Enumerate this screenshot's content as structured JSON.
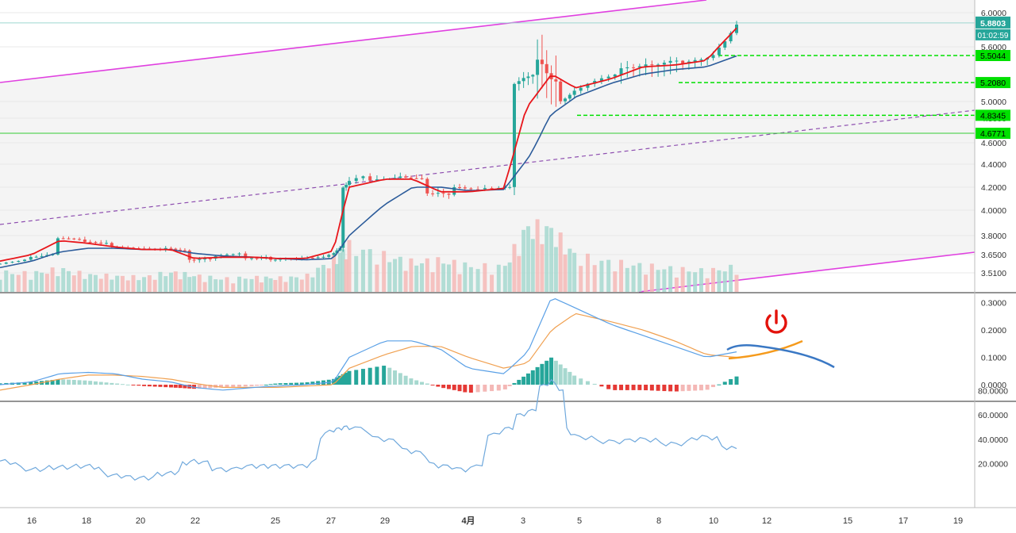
{
  "colors": {
    "up": "#26a69a",
    "down": "#ef5350",
    "ma_fast": "#e8161b",
    "ma_slow": "#2b5b9a",
    "channel": "#e040e0",
    "midline": "#8e4fb0",
    "level_line": "#00e000",
    "support": "#33cc33",
    "price_tag": "#00e000",
    "current_tag": "#26a69a",
    "macd_line": "#5aa0e6",
    "macd_signal": "#f0a050",
    "hist_up_strong": "#26a69a",
    "hist_up_weak": "#a6d8cf",
    "hist_down_strong": "#e53935",
    "hist_down_weak": "#f4b8b6",
    "third_line": "#6fa8dc",
    "power_icon": "#e3120b",
    "drawn_blue": "#3a78c4",
    "drawn_orange": "#f59a1b"
  },
  "chart_data": [
    {
      "type": "candlestick",
      "pane": "price",
      "y_ticks": [
        "6.0000",
        "5.6000",
        "5.0000",
        "4.8000",
        "4.6000",
        "4.4000",
        "4.2000",
        "4.0000",
        "3.8000",
        "3.6500",
        "3.5100"
      ],
      "y_tick_values": [
        6.0,
        5.6,
        5.0,
        4.8,
        4.6,
        4.4,
        4.2,
        4.0,
        3.8,
        3.65,
        3.51
      ],
      "price_labels": [
        {
          "text": "5.8803",
          "value": 5.8803,
          "kind": "current"
        },
        {
          "text": "01:02:59",
          "kind": "countdown"
        },
        {
          "text": "5.5044",
          "value": 5.5044,
          "kind": "level"
        },
        {
          "text": "5.2080",
          "value": 5.208,
          "kind": "level"
        },
        {
          "text": "4.8345",
          "value": 4.8345,
          "kind": "level"
        },
        {
          "text": "4.6771",
          "value": 4.6771,
          "kind": "level"
        }
      ],
      "horizontal_levels": [
        5.5044,
        5.208,
        4.8345
      ],
      "support_level": 4.6771,
      "current_price": 5.8803,
      "series": [
        {
          "name": "",
          "role": "candles",
          "ohlc_segments": [
            [
              "15",
              3.58,
              3.61,
              3.58,
              3.61
            ],
            [
              "16",
              3.63,
              3.68,
              3.62,
              3.65
            ],
            [
              "17",
              3.78,
              3.8,
              3.76,
              3.77
            ],
            [
              "18",
              3.75,
              3.78,
              3.72,
              3.74
            ],
            [
              "19",
              3.71,
              3.73,
              3.69,
              3.7
            ],
            [
              "20",
              3.7,
              3.72,
              3.68,
              3.69
            ],
            [
              "21",
              3.7,
              3.72,
              3.66,
              3.68
            ],
            [
              "22",
              3.61,
              3.64,
              3.58,
              3.62
            ],
            [
              "23",
              3.64,
              3.67,
              3.62,
              3.66
            ],
            [
              "24",
              3.62,
              3.65,
              3.6,
              3.63
            ],
            [
              "25",
              3.61,
              3.63,
              3.59,
              3.62
            ],
            [
              "26",
              3.62,
              3.65,
              3.6,
              3.63
            ],
            [
              "27",
              3.63,
              3.72,
              3.62,
              3.7
            ],
            [
              "28",
              4.2,
              4.35,
              4.1,
              4.3
            ],
            [
              "29",
              4.26,
              4.33,
              4.22,
              4.28
            ],
            [
              "30",
              4.29,
              4.34,
              4.24,
              4.27
            ],
            [
              "31",
              4.15,
              4.22,
              3.99,
              4.14
            ],
            [
              "1",
              4.2,
              4.24,
              4.14,
              4.18
            ],
            [
              "2",
              4.19,
              4.24,
              4.16,
              4.2
            ],
            [
              "3",
              5.2,
              5.4,
              5.05,
              5.3
            ],
            [
              "4",
              5.45,
              5.92,
              4.7,
              5.2
            ],
            [
              "5",
              5.0,
              5.2,
              4.95,
              5.15
            ],
            [
              "6",
              5.2,
              5.35,
              5.15,
              5.3
            ],
            [
              "7",
              5.36,
              5.51,
              5.2,
              5.4
            ],
            [
              "8",
              5.4,
              5.52,
              5.18,
              5.45
            ],
            [
              "9",
              5.42,
              5.52,
              5.3,
              5.48
            ],
            [
              "10",
              5.5,
              5.92,
              5.45,
              5.85
            ]
          ]
        },
        {
          "name": "",
          "role": "ma_fast",
          "values": [
            3.6,
            3.65,
            3.76,
            3.74,
            3.71,
            3.69,
            3.69,
            3.62,
            3.63,
            3.63,
            3.62,
            3.62,
            3.68,
            4.2,
            4.27,
            4.27,
            4.16,
            4.16,
            4.19,
            4.95,
            5.3,
            5.15,
            5.25,
            5.38,
            5.4,
            5.45,
            5.82
          ]
        },
        {
          "name": "",
          "role": "ma_slow",
          "values": [
            3.55,
            3.6,
            3.67,
            3.7,
            3.7,
            3.69,
            3.69,
            3.66,
            3.64,
            3.63,
            3.62,
            3.61,
            3.62,
            3.8,
            4.05,
            4.2,
            4.2,
            4.17,
            4.18,
            4.45,
            4.85,
            5.05,
            5.2,
            5.3,
            5.35,
            5.38,
            5.5
          ]
        }
      ]
    },
    {
      "type": "bar",
      "pane": "volume",
      "series": [
        {
          "name": "",
          "values": [
            30,
            28,
            35,
            26,
            24,
            22,
            30,
            25,
            20,
            22,
            21,
            23,
            50,
            70,
            55,
            45,
            48,
            40,
            38,
            100,
            95,
            55,
            45,
            40,
            35,
            32,
            38
          ]
        }
      ]
    },
    {
      "type": "line",
      "pane": "macd",
      "y_ticks": [
        "0.3000",
        "0.2000",
        "0.1000",
        "0.0000"
      ],
      "y_tick_values": [
        0.3,
        0.2,
        0.1,
        0.0
      ],
      "ylim": [
        -0.04,
        0.32
      ],
      "series": [
        {
          "name": "",
          "role": "macd",
          "values": [
            0.0,
            0.01,
            0.04,
            0.045,
            0.04,
            0.02,
            0.01,
            -0.01,
            -0.02,
            -0.01,
            -0.005,
            0.0,
            0.01,
            0.1,
            0.16,
            0.16,
            0.13,
            0.06,
            0.04,
            0.12,
            0.32,
            0.28,
            0.22,
            0.18,
            0.14,
            0.1,
            0.12
          ]
        },
        {
          "name": "",
          "role": "signal",
          "values": [
            -0.02,
            0.0,
            0.02,
            0.035,
            0.035,
            0.03,
            0.02,
            0.005,
            -0.01,
            -0.01,
            -0.01,
            -0.005,
            0.0,
            0.06,
            0.11,
            0.14,
            0.14,
            0.1,
            0.06,
            0.08,
            0.2,
            0.26,
            0.23,
            0.2,
            0.16,
            0.11,
            0.1
          ]
        },
        {
          "name": "",
          "role": "histogram",
          "values": [
            0.005,
            0.01,
            0.02,
            0.015,
            0.005,
            -0.005,
            -0.01,
            -0.015,
            -0.01,
            -0.005,
            0.005,
            0.008,
            0.02,
            0.05,
            0.07,
            0.02,
            -0.01,
            -0.03,
            -0.02,
            0.04,
            0.1,
            0.03,
            -0.02,
            -0.02,
            -0.025,
            -0.02,
            0.03
          ]
        }
      ]
    },
    {
      "type": "line",
      "pane": "oscillator",
      "y_ticks": [
        "80.0000",
        "60.0000",
        "40.0000",
        "20.0000"
      ],
      "y_tick_values": [
        80,
        60,
        40,
        20
      ],
      "ylim": [
        0,
        90
      ],
      "series": [
        {
          "name": "",
          "values": [
            22,
            15,
            17,
            18,
            10,
            8,
            12,
            22,
            15,
            18,
            18,
            18,
            48,
            50,
            40,
            30,
            18,
            15,
            48,
            62,
            88,
            42,
            38,
            40,
            36,
            42,
            32
          ]
        }
      ]
    }
  ],
  "x_axis_labels": [
    "16",
    "18",
    "20",
    "22",
    "25",
    "27",
    "29",
    "4月",
    "3",
    "5",
    "8",
    "10",
    "12",
    "15",
    "17",
    "19"
  ]
}
